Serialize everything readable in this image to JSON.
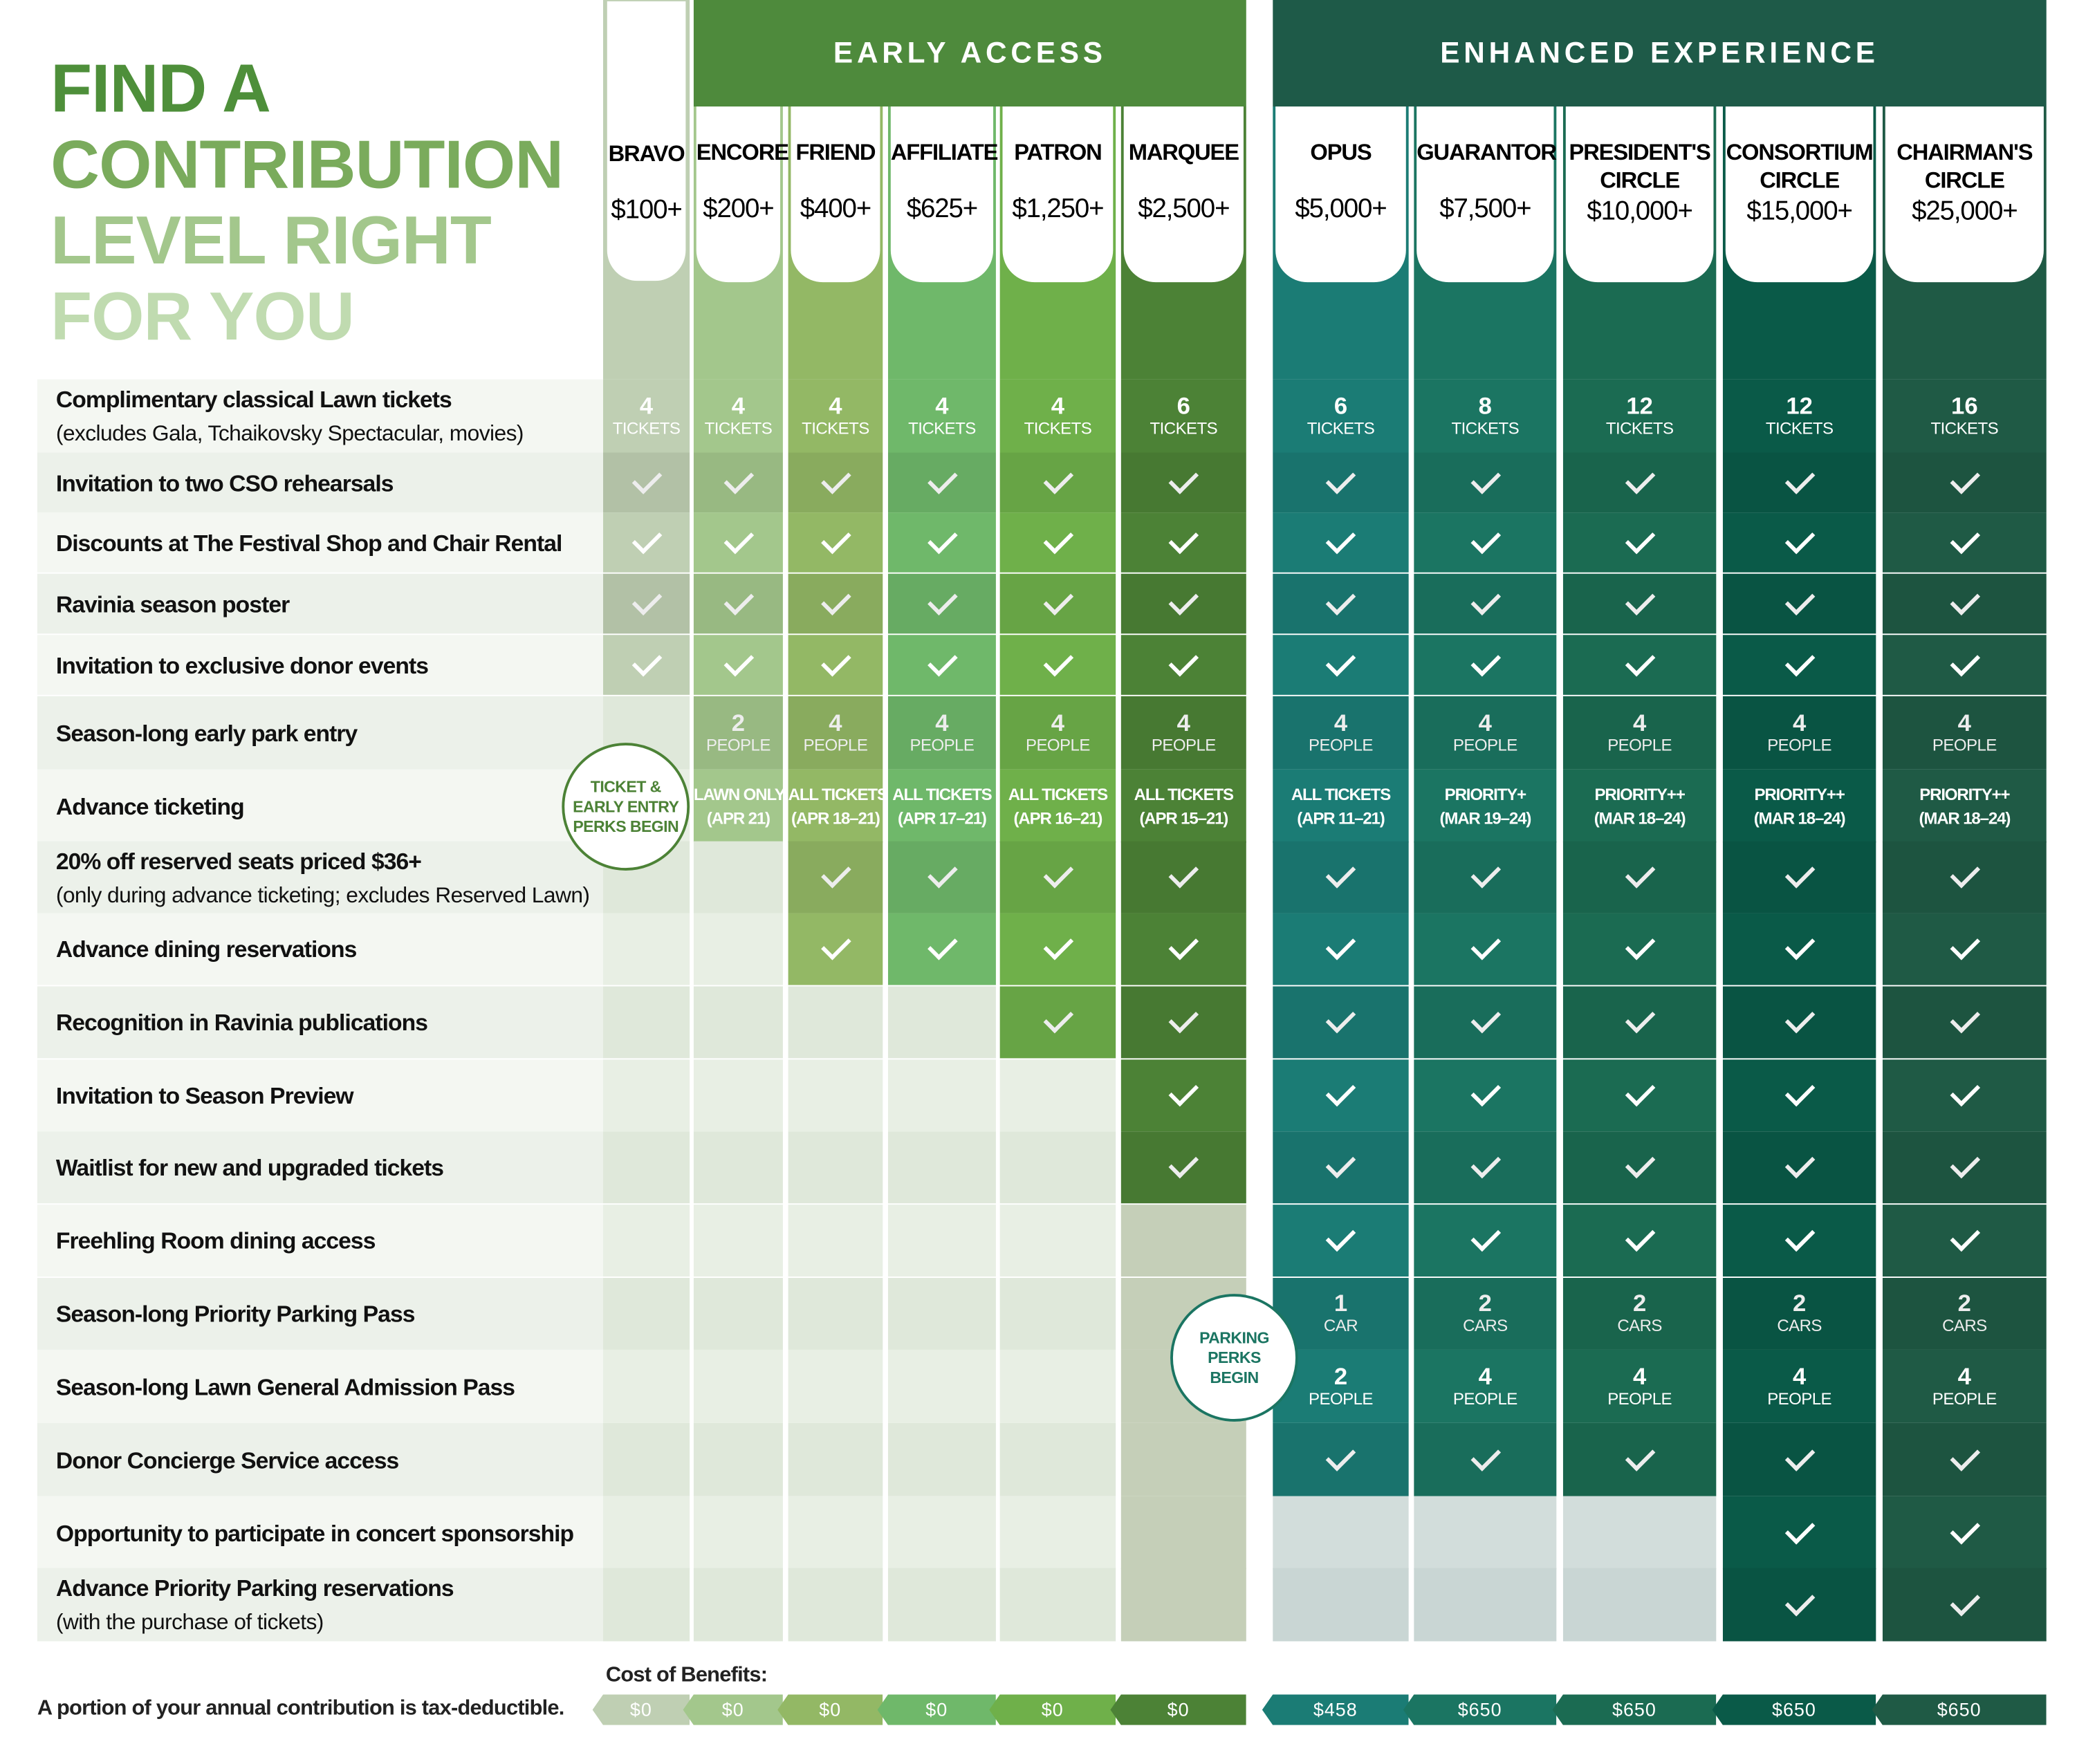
{
  "title": {
    "lines": [
      "FIND A",
      "CONTRIBUTION",
      "LEVEL RIGHT",
      "FOR YOU"
    ],
    "colors": [
      "#4e8f3a",
      "#7aab5c",
      "#a3c78c",
      "#c0dbb0"
    ]
  },
  "bands": {
    "early_access": "EARLY ACCESS",
    "enhanced_experience": "ENHANCED EXPERIENCE"
  },
  "levels": [
    {
      "name": "BRAVO",
      "price": "$100+"
    },
    {
      "name": "ENCORE",
      "price": "$200+"
    },
    {
      "name": "FRIEND",
      "price": "$400+"
    },
    {
      "name": "AFFILIATE",
      "price": "$625+"
    },
    {
      "name": "PATRON",
      "price": "$1,250+"
    },
    {
      "name": "MARQUEE",
      "price": "$2,500+"
    },
    {
      "name": "OPUS",
      "price": "$5,000+"
    },
    {
      "name": "GUARANTOR",
      "price": "$7,500+"
    },
    {
      "name": "PRESIDENT'S CIRCLE",
      "price": "$10,000+"
    },
    {
      "name": "CONSORTIUM CIRCLE",
      "price": "$15,000+"
    },
    {
      "name": "CHAIRMAN'S CIRCLE",
      "price": "$25,000+"
    }
  ],
  "benefits": [
    {
      "label": "Complimentary classical Lawn tickets",
      "sub": "(excludes Gala, Tchaikovsky Spectacular, movies)",
      "cells": [
        {
          "n": "4",
          "u": "TICKETS"
        },
        {
          "n": "4",
          "u": "TICKETS"
        },
        {
          "n": "4",
          "u": "TICKETS"
        },
        {
          "n": "4",
          "u": "TICKETS"
        },
        {
          "n": "4",
          "u": "TICKETS"
        },
        {
          "n": "6",
          "u": "TICKETS"
        },
        {
          "n": "6",
          "u": "TICKETS"
        },
        {
          "n": "8",
          "u": "TICKETS"
        },
        {
          "n": "12",
          "u": "TICKETS"
        },
        {
          "n": "12",
          "u": "TICKETS"
        },
        {
          "n": "16",
          "u": "TICKETS"
        }
      ]
    },
    {
      "label": "Invitation to two CSO rehearsals",
      "cells": [
        "check",
        "check",
        "check",
        "check",
        "check",
        "check",
        "check",
        "check",
        "check",
        "check",
        "check"
      ]
    },
    {
      "label": "Discounts at The Festival Shop and Chair Rental",
      "cells": [
        "check",
        "check",
        "check",
        "check",
        "check",
        "check",
        "check",
        "check",
        "check",
        "check",
        "check"
      ]
    },
    {
      "label": "Ravinia season poster",
      "cells": [
        "check",
        "check",
        "check",
        "check",
        "check",
        "check",
        "check",
        "check",
        "check",
        "check",
        "check"
      ]
    },
    {
      "label": "Invitation to exclusive donor events",
      "cells": [
        "check",
        "check",
        "check",
        "check",
        "check",
        "check",
        "check",
        "check",
        "check",
        "check",
        "check"
      ]
    },
    {
      "label": "Season-long early park entry",
      "cells": [
        null,
        {
          "n": "2",
          "u": "PEOPLE"
        },
        {
          "n": "4",
          "u": "PEOPLE"
        },
        {
          "n": "4",
          "u": "PEOPLE"
        },
        {
          "n": "4",
          "u": "PEOPLE"
        },
        {
          "n": "4",
          "u": "PEOPLE"
        },
        {
          "n": "4",
          "u": "PEOPLE"
        },
        {
          "n": "4",
          "u": "PEOPLE"
        },
        {
          "n": "4",
          "u": "PEOPLE"
        },
        {
          "n": "4",
          "u": "PEOPLE"
        },
        {
          "n": "4",
          "u": "PEOPLE"
        }
      ]
    },
    {
      "label": "Advance ticketing",
      "cells": [
        null,
        {
          "a": "LAWN ONLY",
          "b": "(APR 21)"
        },
        {
          "a": "ALL TICKETS",
          "b": "(APR 18–21)"
        },
        {
          "a": "ALL TICKETS",
          "b": "(APR 17–21)"
        },
        {
          "a": "ALL TICKETS",
          "b": "(APR 16–21)"
        },
        {
          "a": "ALL TICKETS",
          "b": "(APR 15–21)"
        },
        {
          "a": "ALL TICKETS",
          "b": "(APR 11–21)"
        },
        {
          "a": "PRIORITY+",
          "b": "(MAR 19–24)"
        },
        {
          "a": "PRIORITY++",
          "b": "(MAR 18–24)"
        },
        {
          "a": "PRIORITY++",
          "b": "(MAR 18–24)"
        },
        {
          "a": "PRIORITY++",
          "b": "(MAR 18–24)"
        }
      ]
    },
    {
      "label": "20% off reserved seats priced $36+",
      "sub": "(only during advance ticketing; excludes Reserved Lawn)",
      "cells": [
        null,
        null,
        "check",
        "check",
        "check",
        "check",
        "check",
        "check",
        "check",
        "check",
        "check"
      ]
    },
    {
      "label": "Advance dining reservations",
      "cells": [
        null,
        null,
        "check",
        "check",
        "check",
        "check",
        "check",
        "check",
        "check",
        "check",
        "check"
      ]
    },
    {
      "label": "Recognition in Ravinia publications",
      "cells": [
        null,
        null,
        null,
        null,
        "check",
        "check",
        "check",
        "check",
        "check",
        "check",
        "check"
      ]
    },
    {
      "label": "Invitation to Season Preview",
      "cells": [
        null,
        null,
        null,
        null,
        null,
        "check",
        "check",
        "check",
        "check",
        "check",
        "check"
      ]
    },
    {
      "label": "Waitlist for new and upgraded tickets",
      "cells": [
        null,
        null,
        null,
        null,
        null,
        "check",
        "check",
        "check",
        "check",
        "check",
        "check"
      ]
    },
    {
      "label": "Freehling Room dining access",
      "cells": [
        null,
        null,
        null,
        null,
        null,
        null,
        "check",
        "check",
        "check",
        "check",
        "check"
      ]
    },
    {
      "label": "Season-long Priority Parking Pass",
      "cells": [
        null,
        null,
        null,
        null,
        null,
        null,
        {
          "n": "1",
          "u": "CAR"
        },
        {
          "n": "2",
          "u": "CARS"
        },
        {
          "n": "2",
          "u": "CARS"
        },
        {
          "n": "2",
          "u": "CARS"
        },
        {
          "n": "2",
          "u": "CARS"
        }
      ]
    },
    {
      "label": "Season-long Lawn General Admission Pass",
      "cells": [
        null,
        null,
        null,
        null,
        null,
        null,
        {
          "n": "2",
          "u": "PEOPLE"
        },
        {
          "n": "4",
          "u": "PEOPLE"
        },
        {
          "n": "4",
          "u": "PEOPLE"
        },
        {
          "n": "4",
          "u": "PEOPLE"
        },
        {
          "n": "4",
          "u": "PEOPLE"
        }
      ]
    },
    {
      "label": "Donor Concierge Service access",
      "cells": [
        null,
        null,
        null,
        null,
        null,
        null,
        "check",
        "check",
        "check",
        "check",
        "check"
      ]
    },
    {
      "label": "Opportunity to participate in concert sponsorship",
      "cells": [
        null,
        null,
        null,
        null,
        null,
        null,
        null,
        null,
        null,
        "check",
        "check"
      ]
    },
    {
      "label": "Advance Priority Parking reservations",
      "sub": "(with the purchase of tickets)",
      "cells": [
        null,
        null,
        null,
        null,
        null,
        null,
        null,
        null,
        null,
        "check",
        "check"
      ]
    }
  ],
  "callouts": {
    "ticket": "TICKET & EARLY ENTRY PERKS BEGIN",
    "parking": "PARKING PERKS BEGIN"
  },
  "footer": {
    "cost_title": "Cost of Benefits:",
    "tax_note": "A portion of your annual contribution is tax-deductible.",
    "costs": [
      "$0",
      "$0",
      "$0",
      "$0",
      "$0",
      "$0",
      "$458",
      "$650",
      "$650",
      "$650",
      "$650"
    ]
  },
  "colors": {
    "levels": [
      "#bfcfb3",
      "#a3c78c",
      "#93b865",
      "#6fb86a",
      "#6fb04a",
      "#4c8236",
      "#1b7c75",
      "#1b7562",
      "#1b6b52",
      "#0a5a48",
      "#1f5a45"
    ],
    "band_early": "#4e8a3c",
    "band_enhanced": "#1e5a48"
  }
}
